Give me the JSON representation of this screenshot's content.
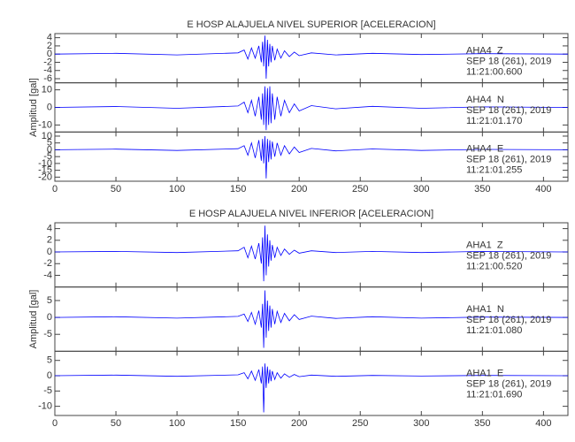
{
  "chart_data": [
    {
      "type": "line",
      "title": "E HOSP ALAJUELA NIVEL SUPERIOR [ACELERACION]",
      "ylabel": "Amplitud [gal]",
      "x": [
        0,
        50,
        100,
        150,
        155,
        158,
        161,
        164,
        167,
        169,
        170,
        171,
        172,
        173,
        174,
        175,
        176,
        177,
        178,
        180,
        182,
        185,
        188,
        192,
        196,
        200,
        210,
        230,
        260,
        300,
        350,
        420
      ],
      "xlim": [
        0,
        420
      ],
      "xticks": [
        0,
        50,
        100,
        150,
        200,
        250,
        300,
        350,
        400
      ],
      "series": [
        {
          "name": "AHA4  Z",
          "date": "SEP 18 (261), 2019",
          "time": "11:21:00.600",
          "color": "#0000ff",
          "ylim": [
            -7,
            5
          ],
          "yticks": [
            -6,
            -4,
            -2,
            0,
            2,
            4
          ],
          "values": [
            0,
            0.2,
            -0.2,
            0.3,
            1,
            -1.2,
            1.5,
            -1,
            2,
            -2,
            3,
            -3,
            4.5,
            -6,
            3.5,
            -3,
            2.5,
            -2,
            2,
            -1.5,
            1.2,
            -1,
            0.8,
            -0.6,
            0.5,
            -0.4,
            0.3,
            -0.2,
            0.2,
            -0.1,
            0.1,
            0
          ]
        },
        {
          "name": "AHA4  N",
          "date": "SEP 18 (261), 2019",
          "time": "11:21:01.170",
          "color": "#0000ff",
          "ylim": [
            -14,
            14
          ],
          "yticks": [
            -10,
            0,
            10
          ],
          "values": [
            0,
            0.5,
            -0.5,
            0.8,
            3,
            -3,
            4,
            -5,
            6,
            -7,
            8,
            -10,
            12,
            -13,
            11,
            -10,
            12,
            -9,
            8,
            -7,
            6,
            -5,
            4,
            -3,
            2,
            -2,
            1,
            -0.8,
            0.6,
            -0.5,
            0.3,
            0
          ]
        },
        {
          "name": "AHA4  E",
          "date": "SEP 18 (261), 2019",
          "time": "11:21:01.255",
          "color": "#0000ff",
          "ylim": [
            -23,
            13
          ],
          "yticks": [
            -20,
            -15,
            -10,
            -5,
            0,
            5,
            10
          ],
          "values": [
            0,
            0.5,
            -0.5,
            0.8,
            3,
            -4,
            5,
            -6,
            7,
            -8,
            8,
            -10,
            10,
            -21,
            8,
            -9,
            7,
            -7,
            6,
            -5,
            5,
            -4,
            3,
            -3,
            2,
            -2,
            1,
            -0.8,
            0.6,
            -0.5,
            0.3,
            0
          ]
        }
      ]
    },
    {
      "type": "line",
      "title": "E HOSP ALAJUELA NIVEL INFERIOR [ACELERACION]",
      "ylabel": "Amplitud [gal]",
      "x": [
        0,
        50,
        100,
        150,
        155,
        158,
        161,
        164,
        167,
        169,
        170,
        171,
        172,
        173,
        174,
        175,
        176,
        177,
        178,
        180,
        182,
        185,
        188,
        192,
        196,
        200,
        210,
        230,
        260,
        300,
        350,
        420
      ],
      "xlim": [
        0,
        420
      ],
      "xticks": [
        0,
        50,
        100,
        150,
        200,
        250,
        300,
        350,
        400
      ],
      "series": [
        {
          "name": "AHA1  Z",
          "date": "SEP 18 (261), 2019",
          "time": "11:21:00.520",
          "color": "#0000ff",
          "ylim": [
            -6,
            5
          ],
          "yticks": [
            -4,
            -2,
            0,
            2,
            4
          ],
          "values": [
            0,
            0.1,
            -0.1,
            0.2,
            0.8,
            -1,
            1,
            -1.2,
            1.5,
            -2,
            2.5,
            -5,
            4.5,
            -4,
            3,
            -2.5,
            2,
            -1.5,
            1.2,
            -1,
            0.8,
            -0.6,
            0.5,
            -0.4,
            0.3,
            -0.2,
            0.2,
            -0.1,
            0.1,
            -0.1,
            0.1,
            0
          ]
        },
        {
          "name": "AHA1  N",
          "date": "SEP 18 (261), 2019",
          "time": "11:21:01.080",
          "color": "#0000ff",
          "ylim": [
            -10,
            9
          ],
          "yticks": [
            -5,
            0,
            5
          ],
          "values": [
            0,
            0.2,
            -0.2,
            0.3,
            1,
            -1.2,
            1.5,
            -2,
            2,
            -3,
            4,
            -9,
            8,
            -6,
            5,
            -4,
            3.5,
            -3,
            2.5,
            -2,
            1.8,
            -1.5,
            1.2,
            -1,
            0.8,
            -0.6,
            0.4,
            -0.3,
            0.2,
            -0.2,
            0.1,
            0
          ]
        },
        {
          "name": "AHA1  E",
          "date": "SEP 18 (261), 2019",
          "time": "11:21:01.690",
          "color": "#0000ff",
          "ylim": [
            -13,
            8
          ],
          "yticks": [
            -10,
            -5,
            0,
            5
          ],
          "values": [
            0,
            0.2,
            -0.2,
            0.3,
            1,
            -1,
            1.5,
            -1.5,
            2,
            -2.5,
            3,
            -12,
            4,
            -4,
            3,
            -2.5,
            2,
            -1.8,
            1.5,
            -1.2,
            1,
            -0.8,
            0.6,
            -0.5,
            0.4,
            -0.3,
            0.2,
            -0.2,
            0.1,
            -0.1,
            0.1,
            0
          ]
        }
      ]
    }
  ]
}
